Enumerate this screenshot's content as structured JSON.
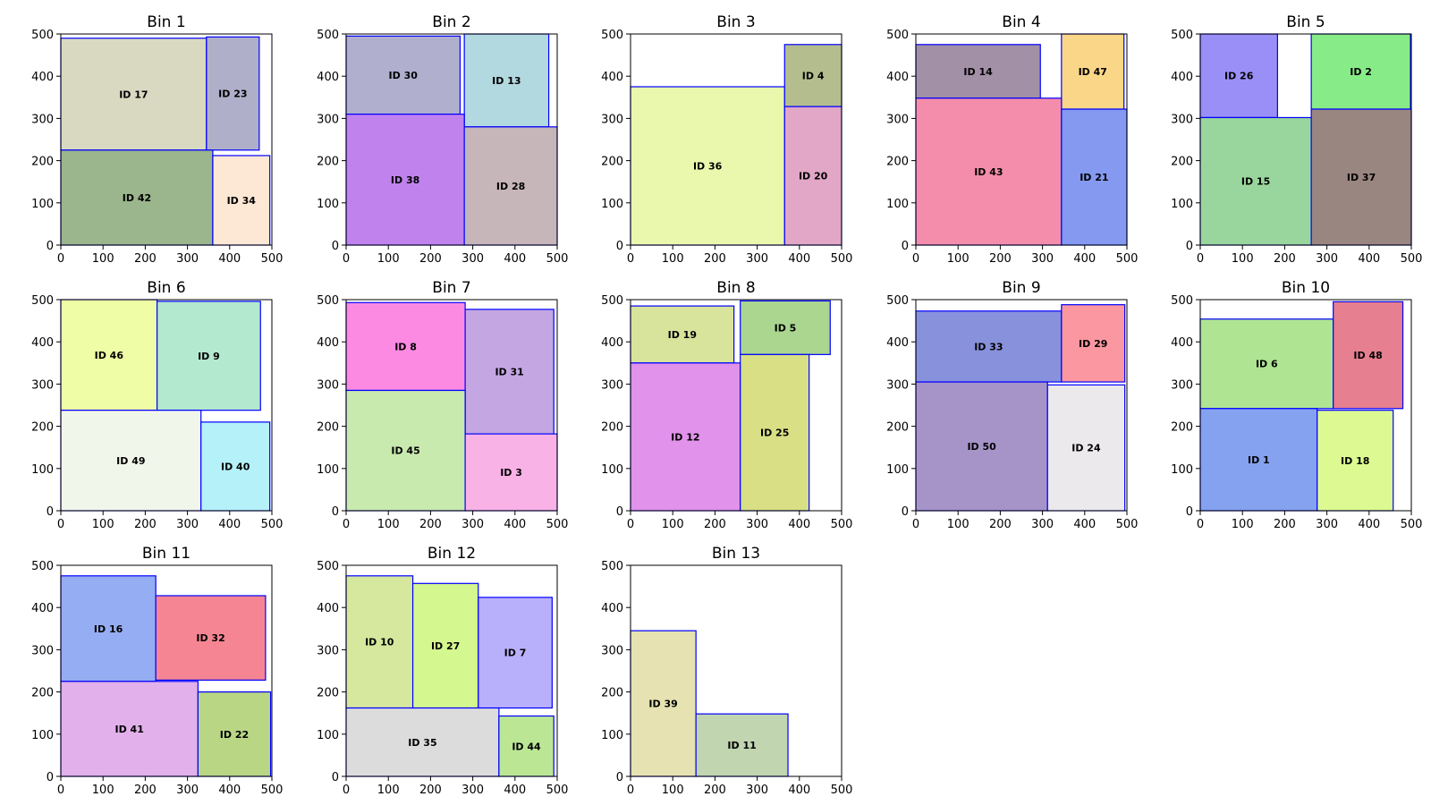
{
  "chart_data": {
    "type": "rectangle-packing",
    "xlim": [
      0,
      500
    ],
    "ylim": [
      0,
      500
    ],
    "ticks": [
      0,
      100,
      200,
      300,
      400,
      500
    ],
    "grid": false,
    "edge_color": "#0000ff",
    "bins": [
      {
        "title": "Bin 1",
        "items": [
          {
            "label": "ID 17",
            "x": 0,
            "y": 225,
            "w": 345,
            "h": 265,
            "color": "#d9d9c2"
          },
          {
            "label": "ID 23",
            "x": 345,
            "y": 225,
            "w": 125,
            "h": 268,
            "color": "#b0afc9"
          },
          {
            "label": "ID 42",
            "x": 0,
            "y": 0,
            "w": 360,
            "h": 225,
            "color": "#9bb58c"
          },
          {
            "label": "ID 34",
            "x": 360,
            "y": 0,
            "w": 135,
            "h": 212,
            "color": "#fde8d5"
          }
        ]
      },
      {
        "title": "Bin 2",
        "items": [
          {
            "label": "ID 30",
            "x": 0,
            "y": 310,
            "w": 270,
            "h": 185,
            "color": "#b0afce"
          },
          {
            "label": "ID 13",
            "x": 280,
            "y": 280,
            "w": 200,
            "h": 220,
            "color": "#b3d9e0"
          },
          {
            "label": "ID 38",
            "x": 0,
            "y": 0,
            "w": 280,
            "h": 310,
            "color": "#c083ee"
          },
          {
            "label": "ID 28",
            "x": 280,
            "y": 0,
            "w": 220,
            "h": 280,
            "color": "#c6b5b9"
          }
        ]
      },
      {
        "title": "Bin 3",
        "items": [
          {
            "label": "ID 36",
            "x": 0,
            "y": 0,
            "w": 365,
            "h": 375,
            "color": "#eaf8ae"
          },
          {
            "label": "ID 4",
            "x": 365,
            "y": 328,
            "w": 135,
            "h": 147,
            "color": "#b4bd8e"
          },
          {
            "label": "ID 20",
            "x": 365,
            "y": 0,
            "w": 135,
            "h": 328,
            "color": "#e2a7c6"
          }
        ]
      },
      {
        "title": "Bin 4",
        "items": [
          {
            "label": "ID 14",
            "x": 0,
            "y": 348,
            "w": 295,
            "h": 127,
            "color": "#a290a6"
          },
          {
            "label": "ID 47",
            "x": 345,
            "y": 322,
            "w": 148,
            "h": 178,
            "color": "#fad688"
          },
          {
            "label": "ID 43",
            "x": 0,
            "y": 0,
            "w": 345,
            "h": 348,
            "color": "#f48dab"
          },
          {
            "label": "ID 21",
            "x": 345,
            "y": 0,
            "w": 155,
            "h": 322,
            "color": "#8499ef"
          }
        ]
      },
      {
        "title": "Bin 5",
        "items": [
          {
            "label": "ID 26",
            "x": 0,
            "y": 302,
            "w": 183,
            "h": 198,
            "color": "#9a8ff6"
          },
          {
            "label": "ID 2",
            "x": 263,
            "y": 322,
            "w": 235,
            "h": 178,
            "color": "#87ec87"
          },
          {
            "label": "ID 15",
            "x": 0,
            "y": 0,
            "w": 263,
            "h": 302,
            "color": "#99d69d"
          },
          {
            "label": "ID 37",
            "x": 263,
            "y": 0,
            "w": 237,
            "h": 322,
            "color": "#9a8680"
          }
        ]
      },
      {
        "title": "Bin 6",
        "items": [
          {
            "label": "ID 46",
            "x": 0,
            "y": 238,
            "w": 228,
            "h": 262,
            "color": "#effda6"
          },
          {
            "label": "ID 9",
            "x": 228,
            "y": 238,
            "w": 245,
            "h": 258,
            "color": "#b3e9cf"
          },
          {
            "label": "ID 49",
            "x": 0,
            "y": 0,
            "w": 332,
            "h": 238,
            "color": "#f1f6eb"
          },
          {
            "label": "ID 40",
            "x": 332,
            "y": 0,
            "w": 163,
            "h": 210,
            "color": "#b5f1f9"
          }
        ]
      },
      {
        "title": "Bin 7",
        "items": [
          {
            "label": "ID 8",
            "x": 0,
            "y": 285,
            "w": 282,
            "h": 208,
            "color": "#fc8ae3"
          },
          {
            "label": "ID 31",
            "x": 282,
            "y": 182,
            "w": 210,
            "h": 295,
            "color": "#c4a6e2"
          },
          {
            "label": "ID 45",
            "x": 0,
            "y": 0,
            "w": 282,
            "h": 285,
            "color": "#c9eaaf"
          },
          {
            "label": "ID 3",
            "x": 282,
            "y": 0,
            "w": 218,
            "h": 182,
            "color": "#f8b2e6"
          }
        ]
      },
      {
        "title": "Bin 8",
        "items": [
          {
            "label": "ID 19",
            "x": 0,
            "y": 350,
            "w": 245,
            "h": 135,
            "color": "#d8e39b"
          },
          {
            "label": "ID 5",
            "x": 260,
            "y": 370,
            "w": 213,
            "h": 127,
            "color": "#aad690"
          },
          {
            "label": "ID 12",
            "x": 0,
            "y": 0,
            "w": 260,
            "h": 350,
            "color": "#e192ea"
          },
          {
            "label": "ID 25",
            "x": 260,
            "y": 0,
            "w": 163,
            "h": 370,
            "color": "#d8df84"
          }
        ]
      },
      {
        "title": "Bin 9",
        "items": [
          {
            "label": "ID 33",
            "x": 0,
            "y": 305,
            "w": 345,
            "h": 168,
            "color": "#8891dc"
          },
          {
            "label": "ID 29",
            "x": 345,
            "y": 305,
            "w": 150,
            "h": 183,
            "color": "#fb97a0"
          },
          {
            "label": "ID 50",
            "x": 0,
            "y": 0,
            "w": 312,
            "h": 305,
            "color": "#a694c9"
          },
          {
            "label": "ID 24",
            "x": 312,
            "y": 0,
            "w": 183,
            "h": 298,
            "color": "#ebe9ec"
          }
        ]
      },
      {
        "title": "Bin 10",
        "items": [
          {
            "label": "ID 6",
            "x": 0,
            "y": 242,
            "w": 315,
            "h": 212,
            "color": "#aee492"
          },
          {
            "label": "ID 48",
            "x": 315,
            "y": 242,
            "w": 165,
            "h": 253,
            "color": "#e67f8f"
          },
          {
            "label": "ID 1",
            "x": 0,
            "y": 0,
            "w": 277,
            "h": 242,
            "color": "#85a2f0"
          },
          {
            "label": "ID 18",
            "x": 277,
            "y": 0,
            "w": 180,
            "h": 238,
            "color": "#dcfa91"
          }
        ]
      },
      {
        "title": "Bin 11",
        "items": [
          {
            "label": "ID 16",
            "x": 0,
            "y": 225,
            "w": 225,
            "h": 250,
            "color": "#95adf2"
          },
          {
            "label": "ID 32",
            "x": 225,
            "y": 228,
            "w": 260,
            "h": 200,
            "color": "#f68593"
          },
          {
            "label": "ID 41",
            "x": 0,
            "y": 0,
            "w": 325,
            "h": 225,
            "color": "#e2b0ea"
          },
          {
            "label": "ID 22",
            "x": 325,
            "y": 0,
            "w": 172,
            "h": 200,
            "color": "#b9d685"
          }
        ]
      },
      {
        "title": "Bin 12",
        "items": [
          {
            "label": "ID 10",
            "x": 0,
            "y": 162,
            "w": 158,
            "h": 313,
            "color": "#d5e89e"
          },
          {
            "label": "ID 27",
            "x": 158,
            "y": 162,
            "w": 155,
            "h": 295,
            "color": "#d4f88f"
          },
          {
            "label": "ID 7",
            "x": 313,
            "y": 162,
            "w": 175,
            "h": 262,
            "color": "#b9b0fb"
          },
          {
            "label": "ID 35",
            "x": 0,
            "y": 0,
            "w": 362,
            "h": 162,
            "color": "#dcdcdc"
          },
          {
            "label": "ID 44",
            "x": 362,
            "y": 0,
            "w": 130,
            "h": 143,
            "color": "#bbe795"
          }
        ]
      },
      {
        "title": "Bin 13",
        "items": [
          {
            "label": "ID 39",
            "x": 0,
            "y": 0,
            "w": 155,
            "h": 345,
            "color": "#e6e2b1"
          },
          {
            "label": "ID 11",
            "x": 155,
            "y": 0,
            "w": 218,
            "h": 148,
            "color": "#c0d5b0"
          }
        ]
      }
    ]
  }
}
